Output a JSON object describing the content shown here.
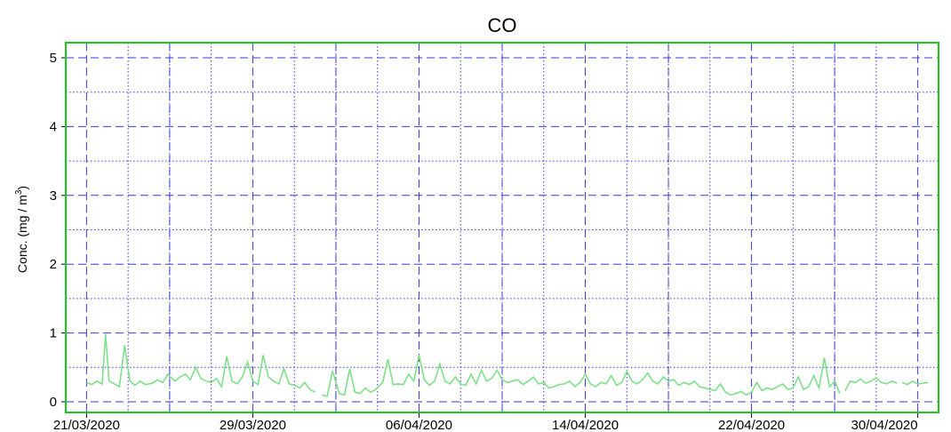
{
  "chart_data": {
    "type": "line",
    "title": "CO",
    "ylabel": "Conc. (mg / m3)",
    "ylabel_parts": {
      "prefix": "Conc. (mg / m",
      "sup": "3",
      "suffix": ")"
    },
    "xlabel": "",
    "ylim": [
      0,
      5
    ],
    "yticks": [
      "0",
      "1",
      "2",
      "3",
      "4",
      "5"
    ],
    "xlim": [
      "2020-03-20",
      "2020-05-01"
    ],
    "xticks": [
      "21/03/2020",
      "29/03/2020",
      "06/04/2020",
      "14/04/2020",
      "22/04/2020",
      "30/04/2020"
    ],
    "grid": true,
    "line_color": "#7ee08a",
    "frame_color": "#19c919",
    "grid_color": "#3a3ad6",
    "series": [
      {
        "x": [
          "2020-03-21 00:00",
          "2020-03-21 06:00",
          "2020-03-21 12:00",
          "2020-03-21 18:00",
          "2020-03-21 22:00",
          "2020-03-22 02:00",
          "2020-03-22 08:00",
          "2020-03-22 14:00",
          "2020-03-22 20:00",
          "2020-03-23 02:00",
          "2020-03-23 08:00",
          "2020-03-23 14:00",
          "2020-03-23 20:00",
          "2020-03-24 04:00",
          "2020-03-24 10:00",
          "2020-03-24 16:00",
          "2020-03-24 22:00",
          "2020-03-25 06:00",
          "2020-03-25 12:00",
          "2020-03-25 18:00",
          "2020-03-26 00:00",
          "2020-03-26 06:00",
          "2020-03-26 12:00",
          "2020-03-26 18:00",
          "2020-03-27 00:00",
          "2020-03-27 06:00",
          "2020-03-27 12:00",
          "2020-03-27 18:00",
          "2020-03-28 00:00",
          "2020-03-28 06:00",
          "2020-03-28 12:00",
          "2020-03-28 18:00",
          "2020-03-29 00:00",
          "2020-03-29 06:00",
          "2020-03-29 12:00",
          "2020-03-29 18:00",
          "2020-03-30 00:00",
          "2020-03-30 06:00",
          "2020-03-30 12:00",
          "2020-03-30 18:00",
          "2020-03-31 00:00",
          "2020-03-31 06:00",
          "2020-03-31 12:00",
          "2020-03-31 18:00",
          "2020-04-01 00:00",
          "2020-04-01 08:00",
          "2020-04-01 14:00",
          "2020-04-01 20:00",
          "2020-04-02 04:00",
          "2020-04-02 10:00",
          "2020-04-02 16:00",
          "2020-04-02 22:00",
          "2020-04-03 04:00",
          "2020-04-03 10:00",
          "2020-04-03 16:00",
          "2020-04-03 22:00",
          "2020-04-04 06:00",
          "2020-04-04 12:00",
          "2020-04-04 18:00",
          "2020-04-05 00:00",
          "2020-04-05 06:00",
          "2020-04-05 12:00",
          "2020-04-05 18:00",
          "2020-04-06 00:00",
          "2020-04-06 06:00",
          "2020-04-06 12:00",
          "2020-04-06 18:00",
          "2020-04-07 00:00",
          "2020-04-07 06:00",
          "2020-04-07 12:00",
          "2020-04-07 18:00",
          "2020-04-08 00:00",
          "2020-04-08 06:00",
          "2020-04-08 12:00",
          "2020-04-08 18:00",
          "2020-04-09 00:00",
          "2020-04-09 06:00",
          "2020-04-09 12:00",
          "2020-04-09 18:00",
          "2020-04-10 00:00",
          "2020-04-10 06:00",
          "2020-04-10 12:00",
          "2020-04-10 18:00",
          "2020-04-11 00:00",
          "2020-04-11 06:00",
          "2020-04-11 12:00",
          "2020-04-11 18:00",
          "2020-04-12 00:00",
          "2020-04-12 06:00",
          "2020-04-12 12:00",
          "2020-04-12 18:00",
          "2020-04-13 00:00",
          "2020-04-13 06:00",
          "2020-04-13 12:00",
          "2020-04-13 18:00",
          "2020-04-14 00:00",
          "2020-04-14 06:00",
          "2020-04-14 12:00",
          "2020-04-14 18:00",
          "2020-04-15 00:00",
          "2020-04-15 06:00",
          "2020-04-15 12:00",
          "2020-04-15 18:00",
          "2020-04-16 00:00",
          "2020-04-16 06:00",
          "2020-04-16 12:00",
          "2020-04-16 18:00",
          "2020-04-17 00:00",
          "2020-04-17 06:00",
          "2020-04-17 12:00",
          "2020-04-17 18:00",
          "2020-04-18 00:00",
          "2020-04-18 06:00",
          "2020-04-18 12:00",
          "2020-04-18 18:00",
          "2020-04-19 00:00",
          "2020-04-19 06:00",
          "2020-04-19 12:00",
          "2020-04-19 18:00",
          "2020-04-20 00:00",
          "2020-04-20 06:00",
          "2020-04-20 12:00",
          "2020-04-20 18:00",
          "2020-04-21 00:00",
          "2020-04-21 06:00",
          "2020-04-21 12:00",
          "2020-04-21 18:00",
          "2020-04-22 00:00",
          "2020-04-22 06:00",
          "2020-04-22 12:00",
          "2020-04-22 18:00",
          "2020-04-23 00:00",
          "2020-04-23 06:00",
          "2020-04-23 12:00",
          "2020-04-23 18:00",
          "2020-04-24 00:00",
          "2020-04-24 06:00",
          "2020-04-24 12:00",
          "2020-04-24 18:00",
          "2020-04-25 00:00",
          "2020-04-25 06:00",
          "2020-04-25 12:00",
          "2020-04-25 18:00",
          "2020-04-26 00:00",
          "2020-04-26 06:00",
          "2020-04-26 12:00",
          "2020-04-26 18:00",
          "2020-04-27 00:00",
          "2020-04-27 06:00",
          "2020-04-27 12:00",
          "2020-04-27 18:00",
          "2020-04-28 00:00",
          "2020-04-28 06:00",
          "2020-04-28 12:00",
          "2020-04-28 18:00",
          "2020-04-29 00:00",
          "2020-04-29 06:00",
          "2020-04-29 12:00",
          "2020-04-29 18:00",
          "2020-04-30 00:00",
          "2020-04-30 12:00"
        ],
        "values": [
          0.28,
          0.25,
          0.3,
          0.26,
          0.98,
          0.3,
          0.26,
          0.22,
          0.82,
          0.3,
          0.24,
          0.3,
          0.25,
          0.27,
          0.32,
          0.28,
          0.4,
          0.3,
          0.36,
          0.4,
          0.32,
          0.5,
          0.34,
          0.3,
          0.28,
          0.34,
          0.22,
          0.66,
          0.3,
          0.26,
          0.36,
          0.58,
          0.3,
          0.25,
          0.68,
          0.36,
          0.3,
          0.26,
          0.48,
          0.26,
          0.24,
          0.2,
          0.28,
          0.18,
          0.14,
          0.1,
          0.08,
          0.45,
          0.12,
          0.1,
          0.48,
          0.14,
          0.12,
          0.2,
          0.14,
          0.18,
          0.28,
          0.62,
          0.25,
          0.26,
          0.25,
          0.4,
          0.3,
          0.68,
          0.32,
          0.24,
          0.3,
          0.55,
          0.3,
          0.26,
          0.36,
          0.26,
          0.24,
          0.4,
          0.26,
          0.46,
          0.3,
          0.34,
          0.46,
          0.32,
          0.28,
          0.3,
          0.32,
          0.25,
          0.3,
          0.36,
          0.26,
          0.28,
          0.2,
          0.22,
          0.25,
          0.26,
          0.3,
          0.22,
          0.28,
          0.4,
          0.26,
          0.22,
          0.28,
          0.26,
          0.38,
          0.24,
          0.28,
          0.44,
          0.3,
          0.26,
          0.32,
          0.42,
          0.3,
          0.26,
          0.36,
          0.3,
          0.32,
          0.24,
          0.28,
          0.25,
          0.3,
          0.22,
          0.2,
          0.18,
          0.16,
          0.26,
          0.14,
          0.1,
          0.12,
          0.15,
          0.1,
          0.14,
          0.28,
          0.16,
          0.2,
          0.18,
          0.22,
          0.26,
          0.18,
          0.2,
          0.36,
          0.18,
          0.22,
          0.38,
          0.2,
          0.64,
          0.22,
          0.3,
          0.12,
          0.16,
          0.3,
          0.28,
          0.33,
          0.27,
          0.3,
          0.35,
          0.28,
          0.26,
          0.3,
          0.27,
          0.28,
          0.25,
          0.3,
          0.26,
          0.28
        ],
        "breaks_after_index": [
          44,
          144,
          155
        ]
      }
    ]
  }
}
